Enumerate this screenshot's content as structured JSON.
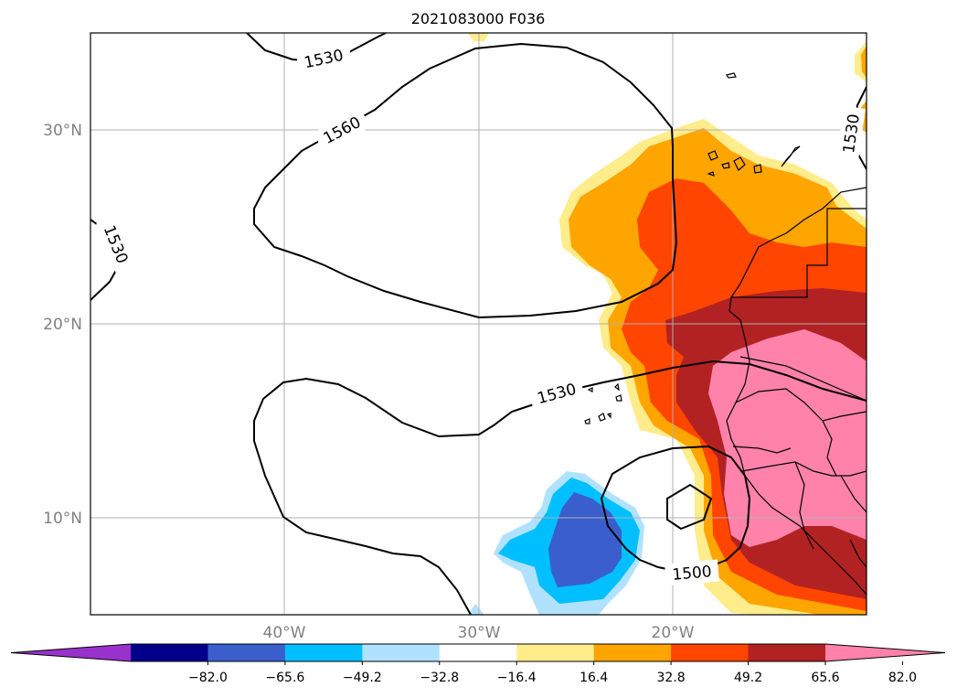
{
  "title": "2021083000 F036",
  "lat_labels": [
    "30°N",
    "20°N",
    "10°N"
  ],
  "lon_labels": [
    "40°W",
    "30°W",
    "20°W"
  ],
  "contour_labels": [
    "1530",
    "1560",
    "1530",
    "1530",
    "1530",
    "1500"
  ],
  "colorbar": {
    "ticks": [
      "−82.0",
      "−65.6",
      "−49.2",
      "−32.8",
      "−16.4",
      "16.4",
      "32.8",
      "49.2",
      "65.6",
      "82.0"
    ],
    "colors": [
      "#9932CC",
      "#00008B",
      "#3A5FCD",
      "#00BFFF",
      "#B0E2FF",
      "#FFFFFF",
      "#FFEC8B",
      "#FFA500",
      "#FF4500",
      "#B22222",
      "#FF82AB"
    ]
  }
}
